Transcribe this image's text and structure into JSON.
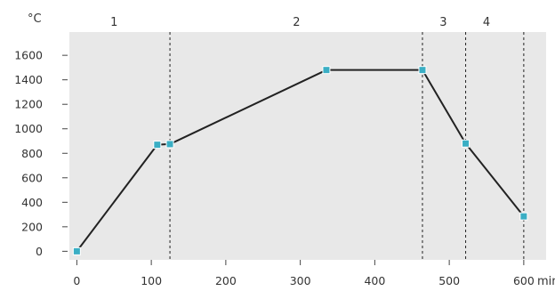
{
  "chart_data": {
    "type": "line",
    "title": "",
    "xlabel": "",
    "ylabel": "",
    "y_unit": "°C",
    "x_unit": "min",
    "xlim": [
      -10,
      630
    ],
    "ylim": [
      -70,
      1790
    ],
    "xticks": [
      0,
      100,
      200,
      300,
      400,
      500,
      600
    ],
    "yticks": [
      0,
      200,
      400,
      600,
      800,
      1000,
      1200,
      1400,
      1600
    ],
    "grid": false,
    "plot_background": "#e8e8e8",
    "series": [
      {
        "color": "#222222",
        "marker_color": "#3aaec4",
        "points": [
          {
            "x": 0,
            "y": 0
          },
          {
            "x": 108,
            "y": 870
          },
          {
            "x": 125,
            "y": 875
          },
          {
            "x": 335,
            "y": 1480
          },
          {
            "x": 464,
            "y": 1480
          },
          {
            "x": 522,
            "y": 880
          },
          {
            "x": 600,
            "y": 285
          }
        ]
      }
    ],
    "phase_boundaries": [
      125,
      464,
      522,
      600
    ],
    "phases": [
      {
        "label": "1",
        "x": 50
      },
      {
        "label": "2",
        "x": 295
      },
      {
        "label": "3",
        "x": 492
      },
      {
        "label": "4",
        "x": 550
      }
    ]
  }
}
